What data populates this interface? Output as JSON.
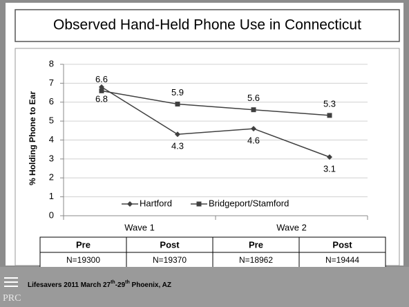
{
  "title": "Observed Hand-Held Phone Use in Connecticut",
  "chart_data": {
    "type": "line",
    "y_label": "% Holding Phone to Ear",
    "categories": [
      "Pre",
      "Post",
      "Pre",
      "Post"
    ],
    "groups": [
      "Wave 1",
      "Wave 2"
    ],
    "series": [
      {
        "name": "Hartford",
        "color": "#404040",
        "marker": "diamond",
        "values": [
          6.8,
          4.3,
          4.6,
          3.1
        ]
      },
      {
        "name": "Bridgeport/Stamford",
        "color": "#404040",
        "marker": "square",
        "values": [
          6.6,
          5.9,
          5.6,
          5.3
        ]
      }
    ],
    "ylim": [
      0,
      8
    ],
    "yticks": [
      0,
      1,
      2,
      3,
      4,
      5,
      6,
      7,
      8
    ],
    "grid": true,
    "legend": "bottom"
  },
  "table": {
    "rows": [
      [
        "N=19300",
        "N=19370",
        "N=18962",
        "N=19444"
      ]
    ]
  },
  "footer": {
    "parts": [
      "Lifesavers 2011 March 27",
      "th",
      "-29",
      "th",
      " Phoenix, AZ"
    ],
    "logo": "PRC"
  }
}
